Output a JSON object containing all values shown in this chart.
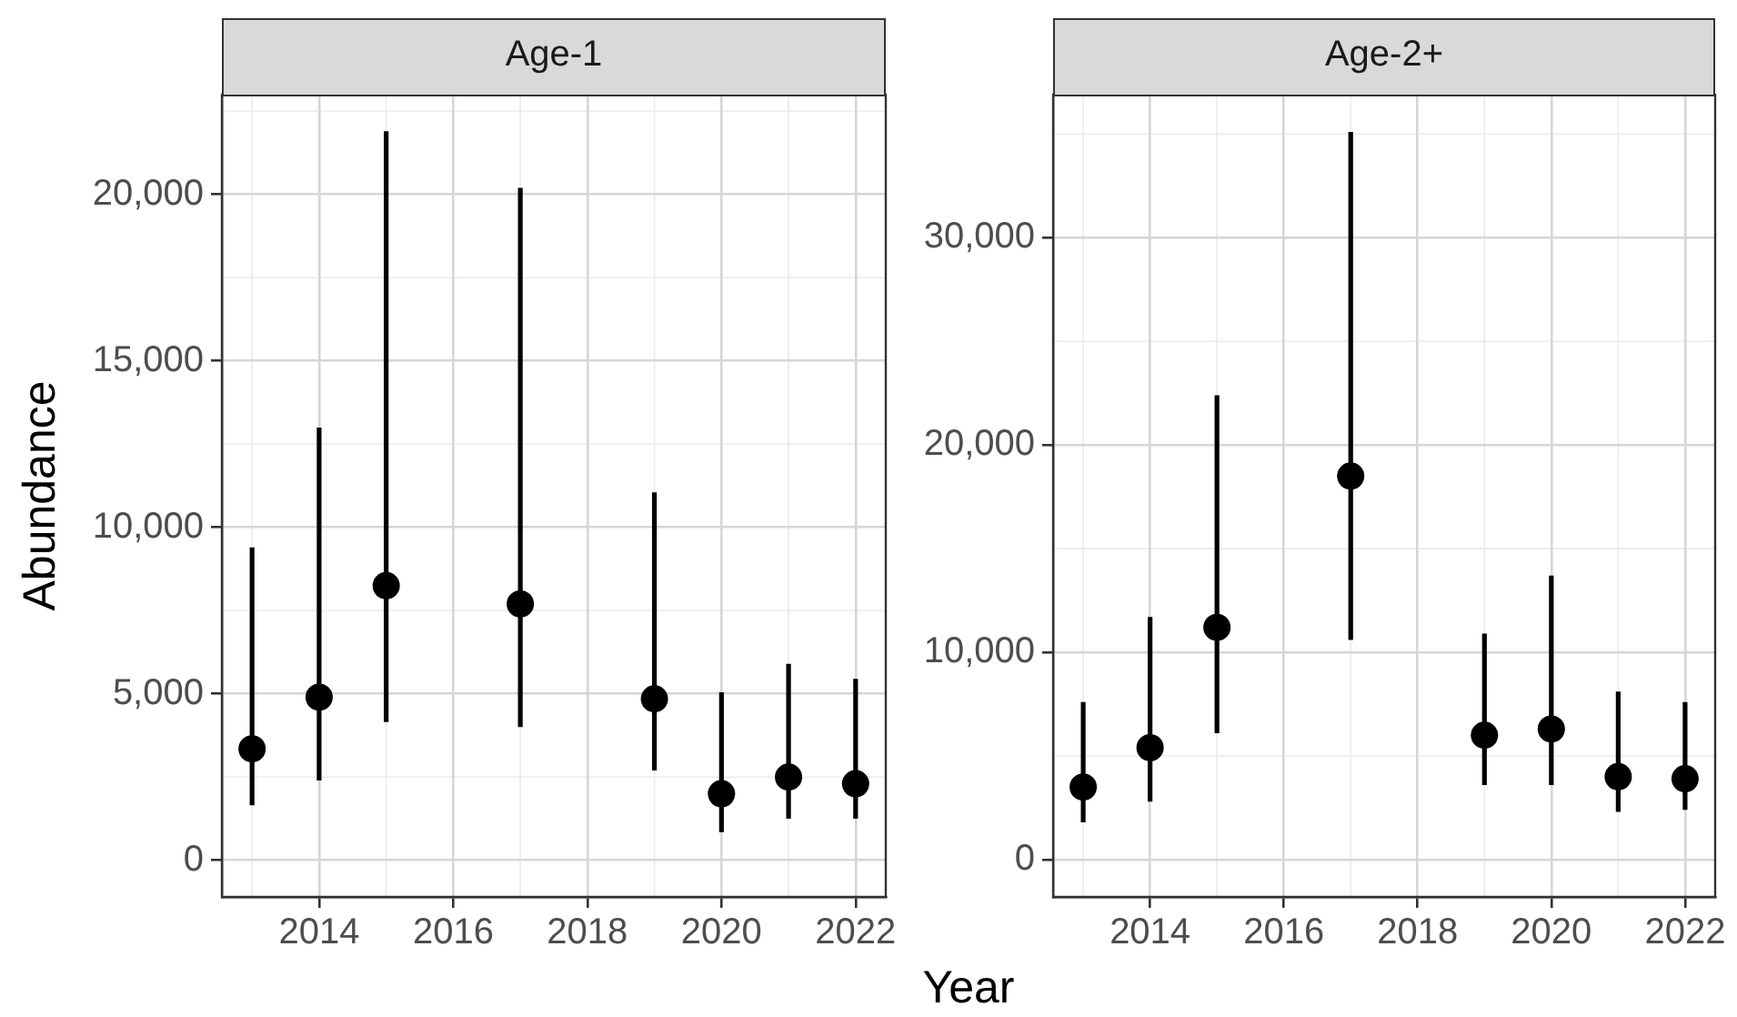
{
  "chart_data": [
    {
      "type": "scatter",
      "title": "Age-1",
      "xlabel": "Year",
      "ylabel": "Abundance",
      "x": [
        2013,
        2014,
        2015,
        2017,
        2019,
        2020,
        2021,
        2022
      ],
      "values": [
        3350,
        4900,
        8250,
        7700,
        4850,
        2000,
        2500,
        2300
      ],
      "errors": [
        [
          1650,
          9400
        ],
        [
          2400,
          13000
        ],
        [
          4150,
          21900
        ],
        [
          4000,
          20200
        ],
        [
          2700,
          11050
        ],
        [
          850,
          5050
        ],
        [
          1250,
          5900
        ],
        [
          1250,
          5450
        ]
      ],
      "color": "#000000",
      "xlim": [
        2012.55,
        2022.45
      ],
      "xticks": [
        2014,
        2016,
        2018,
        2020,
        2022
      ],
      "ylim": [
        -1100,
        23000
      ],
      "yticks": [
        0,
        {
          "value": 5000,
          "label": "5,000"
        },
        {
          "value": 10000,
          "label": "10,000"
        },
        {
          "value": 15000,
          "label": "15,000"
        },
        {
          "value": 20000,
          "label": "20,000"
        }
      ],
      "grid": true,
      "marker": "circle"
    },
    {
      "type": "scatter",
      "title": "Age-2+",
      "x": [
        2013,
        2014,
        2015,
        2017,
        2019,
        2020,
        2021,
        2022
      ],
      "values": [
        3500,
        5400,
        11200,
        18500,
        6000,
        6300,
        4000,
        3900
      ],
      "errors": [
        [
          1800,
          7600
        ],
        [
          2800,
          11700
        ],
        [
          6100,
          22400
        ],
        [
          10600,
          35100
        ],
        [
          3600,
          10900
        ],
        [
          3600,
          13700
        ],
        [
          2300,
          8100
        ],
        [
          2400,
          7600
        ]
      ],
      "color": "#000000",
      "xlim": [
        2012.55,
        2022.45
      ],
      "xticks": [
        2014,
        2016,
        2018,
        2020,
        2022
      ],
      "ylim": [
        -1800,
        36900
      ],
      "yticks": [
        0,
        {
          "value": 10000,
          "label": "10,000"
        },
        {
          "value": 20000,
          "label": "20,000"
        },
        {
          "value": 30000,
          "label": "30,000"
        }
      ],
      "grid": true,
      "marker": "circle"
    }
  ]
}
